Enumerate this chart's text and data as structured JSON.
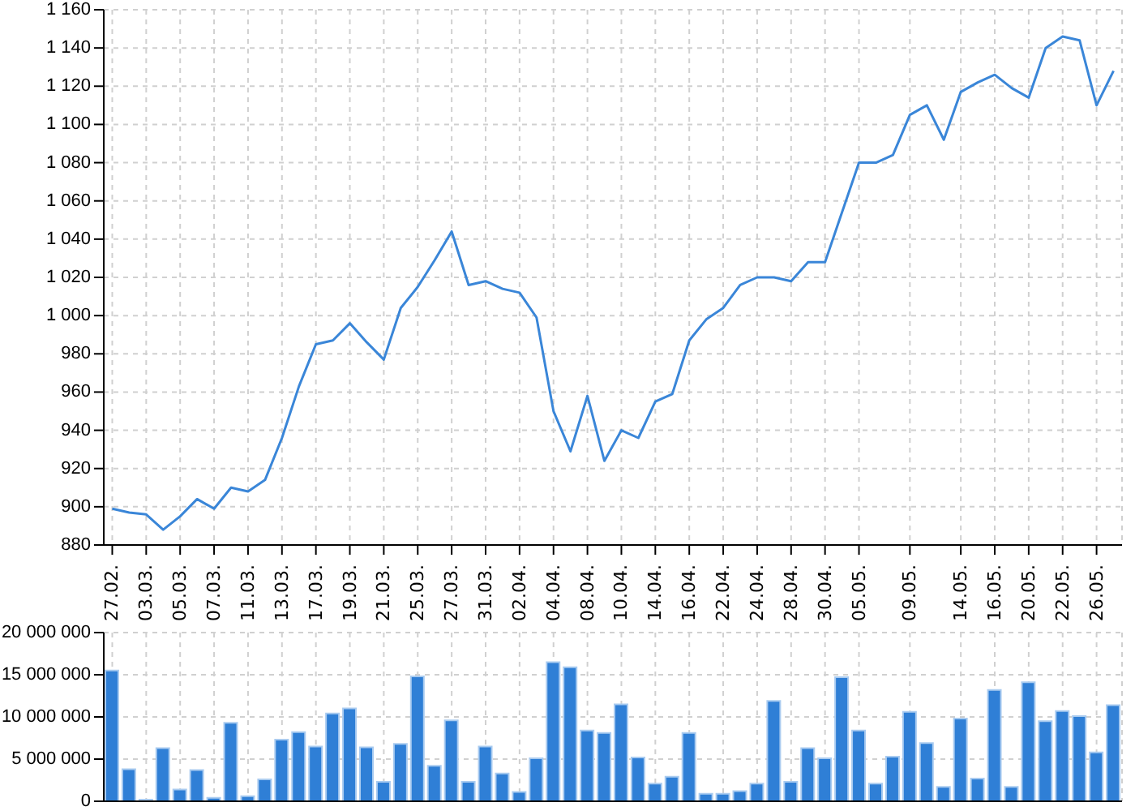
{
  "chart_data": [
    {
      "type": "line",
      "categories": [
        "27.02.",
        null,
        "03.03.",
        null,
        "05.03.",
        null,
        "07.03.",
        null,
        "11.03.",
        null,
        "13.03.",
        null,
        "17.03.",
        null,
        "19.03.",
        null,
        "21.03.",
        null,
        "25.03.",
        null,
        "27.03.",
        null,
        "31.03.",
        null,
        "02.04.",
        null,
        "04.04.",
        null,
        "08.04.",
        null,
        "10.04.",
        null,
        "14.04.",
        null,
        "16.04.",
        null,
        "22.04.",
        null,
        "24.04.",
        null,
        "28.04.",
        null,
        "30.04.",
        null,
        "05.05.",
        null,
        null,
        "09.05.",
        null,
        null,
        "14.05.",
        null,
        "16.05.",
        null,
        "20.05.",
        null,
        "22.05.",
        null,
        "26.05.",
        null
      ],
      "series": [
        {
          "color": "#3a86d8",
          "values": [
            899,
            897,
            896,
            888,
            895,
            904,
            899,
            910,
            908,
            914,
            936,
            963,
            985,
            987,
            996,
            986,
            977,
            1004,
            1015,
            1029,
            1044,
            1016,
            1018,
            1014,
            1012,
            999,
            950,
            929,
            958,
            924,
            940,
            936,
            955,
            959,
            987,
            998,
            1004,
            1016,
            1020,
            1020,
            1018,
            1028,
            1028,
            1054,
            1080,
            1080,
            1084,
            1105,
            1110,
            1092,
            1117,
            1122,
            1126,
            1119,
            1114,
            1140,
            1146,
            1144,
            1110,
            1128
          ]
        }
      ],
      "ylim": [
        880,
        1160
      ],
      "yticks": [
        880,
        900,
        920,
        940,
        960,
        980,
        1000,
        1020,
        1040,
        1060,
        1080,
        1100,
        1120,
        1140,
        1160
      ],
      "grid": true
    },
    {
      "type": "bar",
      "categories": [
        "27.02.",
        null,
        "03.03.",
        null,
        "05.03.",
        null,
        "07.03.",
        null,
        "11.03.",
        null,
        "13.03.",
        null,
        "17.03.",
        null,
        "19.03.",
        null,
        "21.03.",
        null,
        "25.03.",
        null,
        "27.03.",
        null,
        "31.03.",
        null,
        "02.04.",
        null,
        "04.04.",
        null,
        "08.04.",
        null,
        "10.04.",
        null,
        "14.04.",
        null,
        "16.04.",
        null,
        "22.04.",
        null,
        "24.04.",
        null,
        "28.04.",
        null,
        "30.04.",
        null,
        "05.05.",
        null,
        null,
        "09.05.",
        null,
        null,
        "14.05.",
        null,
        "16.05.",
        null,
        "20.05.",
        null,
        "22.05.",
        null,
        "26.05.",
        null
      ],
      "series": [
        {
          "color": "#2f7fd6",
          "values": [
            15500000,
            3800000,
            200000,
            6300000,
            1400000,
            3700000,
            400000,
            9300000,
            600000,
            2600000,
            7300000,
            8200000,
            6500000,
            10400000,
            11000000,
            6400000,
            2300000,
            6800000,
            14800000,
            4200000,
            9600000,
            2300000,
            6500000,
            3300000,
            1100000,
            5100000,
            16500000,
            15900000,
            8400000,
            8100000,
            11500000,
            5200000,
            2100000,
            2900000,
            8100000,
            900000,
            900000,
            1200000,
            2100000,
            11900000,
            2300000,
            6300000,
            5100000,
            14700000,
            8400000,
            2100000,
            5300000,
            10600000,
            6900000,
            1700000,
            9800000,
            2700000,
            13200000,
            1700000,
            14100000,
            9500000,
            10700000,
            10100000,
            5800000,
            11400000
          ]
        }
      ],
      "ylim": [
        0,
        20000000
      ],
      "yticks": [
        0,
        5000000,
        10000000,
        15000000,
        20000000
      ],
      "grid": true,
      "tick_labels": "y"
    }
  ]
}
